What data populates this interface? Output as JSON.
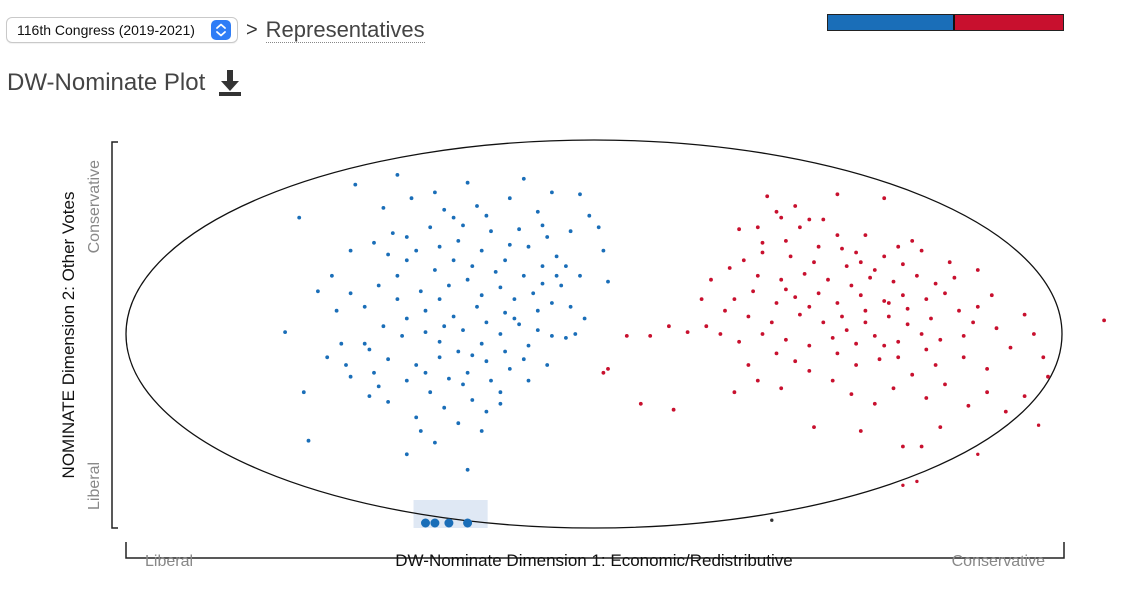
{
  "header": {
    "congress_select": "116th Congress (2019-2021)",
    "separator": ">",
    "breadcrumb": "Representatives"
  },
  "plot_title": "DW-Nominate Plot",
  "icons": {
    "download": "download-icon",
    "select_arrow": "updown-chevron-icon"
  },
  "colors": {
    "democrat": "#1a6eb8",
    "republican": "#c8102e",
    "highlight": "#dfe8f4"
  },
  "party_bar": {
    "democrat_share": 0.54,
    "republican_share": 0.46
  },
  "chart_data": {
    "type": "scatter",
    "xlabel": "DW-Nominate Dimension 1: Economic/Redistributive",
    "ylabel": "NOMINATE Dimension 2: Other Votes",
    "x_low_label": "Liberal",
    "x_high_label": "Conservative",
    "y_low_label": "Liberal",
    "y_high_label": "Conservative",
    "xlim": [
      -1,
      1
    ],
    "ylim": [
      -1,
      1
    ],
    "series": [
      {
        "party": "democrat",
        "points": [
          [
            -0.42,
            0.82
          ],
          [
            -0.51,
            0.77
          ],
          [
            -0.27,
            0.78
          ],
          [
            -0.34,
            0.73
          ],
          [
            -0.45,
            0.65
          ],
          [
            -0.63,
            0.6
          ],
          [
            -0.32,
            0.64
          ],
          [
            -0.23,
            0.61
          ],
          [
            -0.18,
            0.7
          ],
          [
            -0.12,
            0.63
          ],
          [
            -0.16,
            0.54
          ],
          [
            -0.22,
            0.53
          ],
          [
            -0.28,
            0.56
          ],
          [
            -0.35,
            0.55
          ],
          [
            -0.4,
            0.5
          ],
          [
            -0.47,
            0.47
          ],
          [
            -0.52,
            0.43
          ],
          [
            -0.44,
            0.41
          ],
          [
            -0.38,
            0.43
          ],
          [
            -0.33,
            0.45
          ],
          [
            -0.29,
            0.48
          ],
          [
            -0.24,
            0.43
          ],
          [
            -0.19,
            0.38
          ],
          [
            -0.14,
            0.45
          ],
          [
            -0.1,
            0.5
          ],
          [
            -0.05,
            0.53
          ],
          [
            -0.11,
            0.35
          ],
          [
            -0.08,
            0.3
          ],
          [
            -0.15,
            0.3
          ],
          [
            -0.26,
            0.35
          ],
          [
            -0.34,
            0.33
          ],
          [
            -0.42,
            0.3
          ],
          [
            -0.56,
            0.3
          ],
          [
            -0.59,
            0.22
          ],
          [
            -0.52,
            0.21
          ],
          [
            -0.46,
            0.25
          ],
          [
            -0.37,
            0.22
          ],
          [
            -0.31,
            0.25
          ],
          [
            -0.27,
            0.28
          ],
          [
            -0.24,
            0.2
          ],
          [
            -0.2,
            0.24
          ],
          [
            -0.17,
            0.18
          ],
          [
            -0.13,
            0.21
          ],
          [
            -0.09,
            0.16
          ],
          [
            -0.07,
            0.25
          ],
          [
            -0.03,
            0.3
          ],
          [
            -0.12,
            0.12
          ],
          [
            -0.19,
            0.11
          ],
          [
            -0.25,
            0.14
          ],
          [
            -0.3,
            0.09
          ],
          [
            -0.36,
            0.12
          ],
          [
            -0.4,
            0.08
          ],
          [
            -0.45,
            0.04
          ],
          [
            -0.41,
            -0.01
          ],
          [
            -0.36,
            0.01
          ],
          [
            -0.32,
            0.04
          ],
          [
            -0.28,
            0.02
          ],
          [
            -0.23,
            0.06
          ],
          [
            -0.2,
            0.0
          ],
          [
            -0.16,
            0.05
          ],
          [
            -0.12,
            0.02
          ],
          [
            -0.09,
            -0.01
          ],
          [
            -0.14,
            -0.06
          ],
          [
            -0.19,
            -0.09
          ],
          [
            -0.24,
            -0.05
          ],
          [
            -0.29,
            -0.09
          ],
          [
            -0.33,
            -0.12
          ],
          [
            -0.38,
            -0.16
          ],
          [
            -0.44,
            -0.13
          ],
          [
            -0.48,
            -0.08
          ],
          [
            -0.54,
            -0.05
          ],
          [
            -0.57,
            -0.12
          ],
          [
            -0.52,
            -0.22
          ],
          [
            -0.46,
            -0.27
          ],
          [
            -0.4,
            -0.24
          ],
          [
            -0.35,
            -0.3
          ],
          [
            -0.31,
            -0.23
          ],
          [
            -0.27,
            -0.2
          ],
          [
            -0.23,
            -0.14
          ],
          [
            -0.18,
            -0.18
          ],
          [
            -0.14,
            -0.24
          ],
          [
            -0.1,
            -0.16
          ],
          [
            -0.2,
            -0.3
          ],
          [
            -0.26,
            -0.34
          ],
          [
            -0.32,
            -0.38
          ],
          [
            -0.38,
            -0.43
          ],
          [
            -0.29,
            -0.46
          ],
          [
            -0.24,
            -0.5
          ],
          [
            -0.34,
            -0.56
          ],
          [
            -0.4,
            -0.62
          ],
          [
            -0.27,
            -0.7
          ],
          [
            -0.62,
            -0.3
          ],
          [
            -0.61,
            -0.55
          ],
          [
            -0.66,
            0.01
          ],
          [
            -0.49,
            0.14
          ],
          [
            -0.05,
            0.14
          ],
          [
            -0.02,
            0.08
          ],
          [
            -0.06,
            -0.02
          ],
          [
            -0.21,
            0.32
          ],
          [
            -0.33,
            0.18
          ],
          [
            -0.42,
            0.18
          ],
          [
            -0.17,
            0.08
          ],
          [
            -0.26,
            -0.11
          ],
          [
            -0.22,
            -0.24
          ],
          [
            -0.01,
            0.61
          ],
          [
            0.02,
            0.43
          ],
          [
            -0.08,
            0.4
          ],
          [
            -0.3,
            0.6
          ],
          [
            -0.39,
            0.7
          ],
          [
            -0.15,
            0.8
          ],
          [
            -0.09,
            0.73
          ],
          [
            -0.03,
            0.72
          ],
          [
            0.01,
            0.55
          ],
          [
            -0.49,
            -0.05
          ],
          [
            -0.53,
            -0.16
          ],
          [
            -0.48,
            -0.32
          ],
          [
            -0.36,
            -0.2
          ],
          [
            -0.3,
            0.38
          ],
          [
            -0.18,
            0.46
          ],
          [
            -0.11,
            0.56
          ],
          [
            0.03,
            0.27
          ],
          [
            -0.04,
            0.0
          ],
          [
            -0.44,
            -0.35
          ],
          [
            -0.37,
            -0.5
          ],
          [
            -0.23,
            -0.4
          ],
          [
            -0.15,
            -0.13
          ],
          [
            -0.4,
            0.38
          ],
          [
            -0.55,
            0.12
          ],
          [
            -0.28,
            -0.26
          ],
          [
            -0.2,
            -0.36
          ],
          [
            -0.33,
            -0.04
          ],
          [
            -0.47,
            -0.2
          ],
          [
            -0.43,
            0.52
          ],
          [
            -0.25,
            0.66
          ],
          [
            -0.06,
            0.35
          ],
          [
            -0.11,
            0.26
          ]
        ]
      },
      {
        "party": "republican",
        "points": [
          [
            0.39,
            0.63
          ],
          [
            0.46,
            0.59
          ],
          [
            0.35,
            0.55
          ],
          [
            0.52,
            0.51
          ],
          [
            0.41,
            0.48
          ],
          [
            0.48,
            0.45
          ],
          [
            0.56,
            0.42
          ],
          [
            0.62,
            0.4
          ],
          [
            0.7,
            0.43
          ],
          [
            0.66,
            0.36
          ],
          [
            0.6,
            0.33
          ],
          [
            0.54,
            0.35
          ],
          [
            0.47,
            0.37
          ],
          [
            0.42,
            0.4
          ],
          [
            0.36,
            0.42
          ],
          [
            0.32,
            0.38
          ],
          [
            0.29,
            0.34
          ],
          [
            0.35,
            0.3
          ],
          [
            0.4,
            0.28
          ],
          [
            0.45,
            0.31
          ],
          [
            0.5,
            0.28
          ],
          [
            0.55,
            0.25
          ],
          [
            0.59,
            0.29
          ],
          [
            0.64,
            0.27
          ],
          [
            0.69,
            0.3
          ],
          [
            0.73,
            0.26
          ],
          [
            0.77,
            0.29
          ],
          [
            0.75,
            0.21
          ],
          [
            0.71,
            0.18
          ],
          [
            0.66,
            0.2
          ],
          [
            0.62,
            0.17
          ],
          [
            0.57,
            0.2
          ],
          [
            0.52,
            0.16
          ],
          [
            0.48,
            0.21
          ],
          [
            0.43,
            0.19
          ],
          [
            0.39,
            0.16
          ],
          [
            0.34,
            0.22
          ],
          [
            0.3,
            0.18
          ],
          [
            0.28,
            0.12
          ],
          [
            0.33,
            0.09
          ],
          [
            0.38,
            0.06
          ],
          [
            0.44,
            0.1
          ],
          [
            0.49,
            0.06
          ],
          [
            0.53,
            0.09
          ],
          [
            0.58,
            0.06
          ],
          [
            0.63,
            0.09
          ],
          [
            0.67,
            0.05
          ],
          [
            0.72,
            0.08
          ],
          [
            0.78,
            0.12
          ],
          [
            0.81,
            0.06
          ],
          [
            0.79,
            -0.01
          ],
          [
            0.74,
            -0.03
          ],
          [
            0.7,
            0.0
          ],
          [
            0.65,
            -0.04
          ],
          [
            0.6,
            -0.01
          ],
          [
            0.56,
            -0.05
          ],
          [
            0.51,
            -0.02
          ],
          [
            0.46,
            -0.06
          ],
          [
            0.41,
            -0.03
          ],
          [
            0.36,
            0.0
          ],
          [
            0.31,
            -0.04
          ],
          [
            0.27,
            0.0
          ],
          [
            0.24,
            0.04
          ],
          [
            0.2,
            0.01
          ],
          [
            0.16,
            0.04
          ],
          [
            0.12,
            -0.01
          ],
          [
            0.07,
            -0.01
          ],
          [
            0.03,
            -0.18
          ],
          [
            0.02,
            -0.2
          ],
          [
            0.1,
            -0.36
          ],
          [
            0.17,
            -0.39
          ],
          [
            0.3,
            -0.3
          ],
          [
            0.35,
            -0.24
          ],
          [
            0.4,
            -0.28
          ],
          [
            0.46,
            -0.19
          ],
          [
            0.51,
            -0.24
          ],
          [
            0.55,
            -0.31
          ],
          [
            0.6,
            -0.36
          ],
          [
            0.64,
            -0.28
          ],
          [
            0.68,
            -0.21
          ],
          [
            0.71,
            -0.33
          ],
          [
            0.75,
            -0.26
          ],
          [
            0.8,
            -0.37
          ],
          [
            0.84,
            -0.3
          ],
          [
            0.88,
            -0.4
          ],
          [
            0.92,
            -0.32
          ],
          [
            0.96,
            -0.12
          ],
          [
            0.97,
            -0.22
          ],
          [
            0.74,
            -0.48
          ],
          [
            0.7,
            -0.58
          ],
          [
            0.66,
            -0.58
          ],
          [
            0.57,
            -0.5
          ],
          [
            0.47,
            -0.48
          ],
          [
            0.61,
            -0.13
          ],
          [
            0.52,
            -0.1
          ],
          [
            0.43,
            -0.14
          ],
          [
            0.82,
            0.14
          ],
          [
            0.86,
            0.03
          ],
          [
            0.89,
            -0.07
          ],
          [
            0.84,
            -0.18
          ],
          [
            0.79,
            -0.12
          ],
          [
            0.73,
            -0.16
          ],
          [
            0.65,
            -0.12
          ],
          [
            0.56,
            -0.16
          ],
          [
            0.53,
            0.44
          ],
          [
            0.58,
            0.51
          ],
          [
            0.49,
            0.59
          ],
          [
            0.43,
            0.66
          ],
          [
            0.52,
            0.72
          ],
          [
            0.62,
            0.7
          ],
          [
            0.37,
            0.71
          ],
          [
            0.31,
            0.54
          ],
          [
            0.76,
            0.37
          ],
          [
            0.82,
            0.33
          ],
          [
            0.68,
            0.48
          ],
          [
            0.44,
            0.55
          ],
          [
            0.36,
            0.47
          ],
          [
            0.25,
            0.28
          ],
          [
            0.23,
            0.18
          ],
          [
            0.58,
            0.12
          ],
          [
            0.63,
            0.16
          ],
          [
            0.46,
            0.14
          ],
          [
            0.41,
            0.23
          ],
          [
            0.54,
            0.02
          ],
          [
            0.67,
            0.13
          ],
          [
            0.85,
            0.2
          ],
          [
            0.92,
            0.1
          ],
          [
            0.94,
            0.0
          ],
          [
            0.71,
            -0.08
          ],
          [
            0.62,
            -0.06
          ],
          [
            0.39,
            -0.1
          ],
          [
            0.33,
            -0.16
          ],
          [
            1.09,
            0.07
          ],
          [
            0.4,
            0.6
          ],
          [
            0.57,
            0.37
          ],
          [
            0.65,
            0.45
          ]
        ]
      }
    ],
    "boundary_points": [
      {
        "party": "democrat",
        "x": -0.36,
        "y": -1.0
      },
      {
        "party": "democrat",
        "x": -0.34,
        "y": -1.0
      },
      {
        "party": "democrat",
        "x": -0.31,
        "y": -1.0
      },
      {
        "party": "democrat",
        "x": -0.27,
        "y": -1.0
      }
    ],
    "edge_points": [
      {
        "party": "republican",
        "x": 0.66,
        "y": -0.78
      },
      {
        "party": "republican",
        "x": 0.69,
        "y": -0.76
      },
      {
        "party": "republican",
        "x": 0.82,
        "y": -0.62
      },
      {
        "party": "republican",
        "x": 0.95,
        "y": -0.47
      },
      {
        "party": "neutral",
        "x": 0.38,
        "y": -0.96
      }
    ]
  }
}
